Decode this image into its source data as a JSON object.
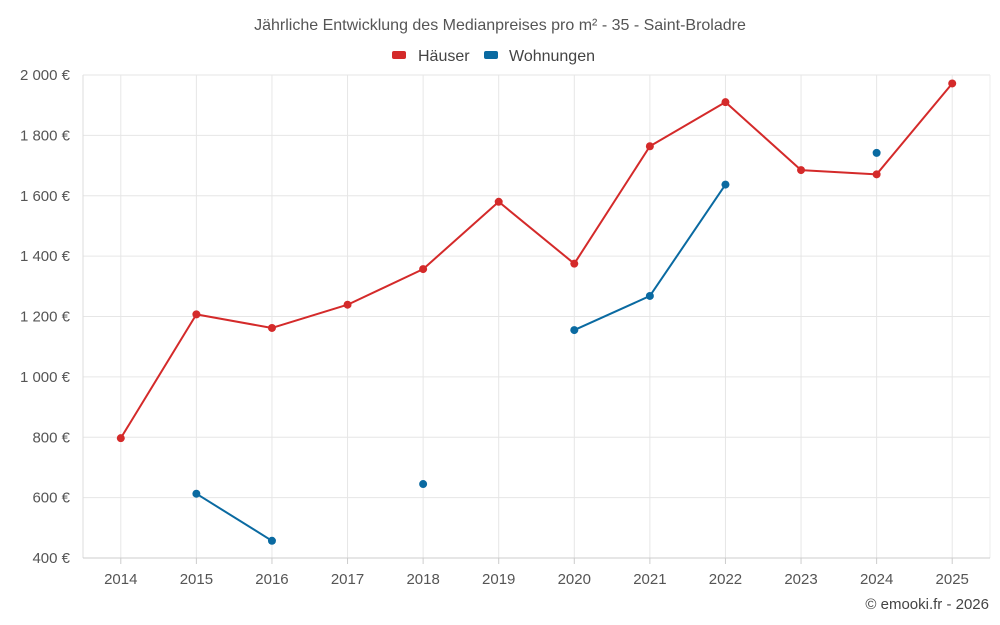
{
  "chart_data": {
    "type": "line",
    "title": "Jährliche Entwicklung des Medianpreises pro m² - 35 - Saint-Broladre",
    "categories": [
      "2014",
      "2015",
      "2016",
      "2017",
      "2018",
      "2019",
      "2020",
      "2021",
      "2022",
      "2023",
      "2024",
      "2025"
    ],
    "series": [
      {
        "name": "Häuser",
        "color": "#d42a2a",
        "values": [
          797,
          1207,
          1162,
          1239,
          1357,
          1580,
          1375,
          1764,
          1910,
          1685,
          1671,
          1972
        ]
      },
      {
        "name": "Wohnungen",
        "color": "#0a6aa1",
        "values": [
          null,
          613,
          457,
          null,
          645,
          null,
          1155,
          1268,
          1637,
          null,
          1742,
          null
        ]
      }
    ],
    "ylim": [
      400,
      2000
    ],
    "yticks": [
      400,
      600,
      800,
      1000,
      1200,
      1400,
      1600,
      1800,
      2000
    ],
    "ytick_labels": [
      "400 €",
      "600 €",
      "800 €",
      "1 000 €",
      "1 200 €",
      "1 400 €",
      "1 600 €",
      "1 800 €",
      "2 000 €"
    ],
    "grid": true,
    "legend_position": "top-center",
    "xlabel": "",
    "ylabel": ""
  },
  "credit": "© emooki.fr - 2026"
}
